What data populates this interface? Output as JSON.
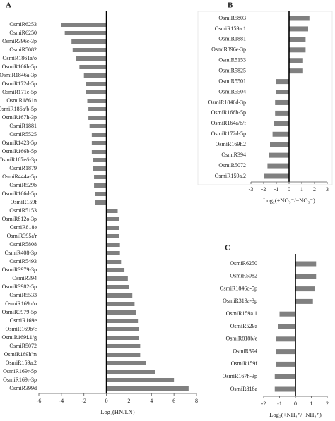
{
  "chart_data": [
    {
      "type": "bar",
      "orientation": "horizontal",
      "title": "A",
      "x_label": "Log₂(HN/LN)",
      "color": "#808080",
      "categories": [
        "OsmiR6253",
        "OsmiR6250",
        "OsmiR396c-3p",
        "OsmiR5082",
        "OsmiR1861a/o",
        "OsmiR166h-5p",
        "OsmiR1846a-3p",
        "OsmiR172d-5p",
        "OsmiR171c-5p",
        "OsmiR1861n",
        "OsmiR186a/b-5p",
        "OsmiR167h-3p",
        "OsmiR1881",
        "OsmiR5525",
        "OsmiR1423-5p",
        "OsmiR166b-5p",
        "OsmiR167e/i-3p",
        "OsmiR1879",
        "OsmiR444a-5p",
        "OsmiR529b",
        "OsmiR166d-5p",
        "OsmiR159f",
        "OsmiR5153",
        "OsmiR812o-3p",
        "OsmiR818e",
        "OsmiR395a'r",
        "OsmiR5808",
        "OsmiR408-3p",
        "OsmiR5493",
        "OsmiR3979-3p",
        "OsmiR394",
        "OsmiR3982-5p",
        "OsmiR5533",
        "OsmiR169n/o",
        "OsmiR3979-5p",
        "OsmiR169e",
        "OsmiR169b/c",
        "OsmiR169f.1/g",
        "OsmiR5072",
        "OsmiR169h'm",
        "OsmiR159a.2",
        "OsmiR169r-5p",
        "OsmiR169r-3p",
        "OsmiR399d"
      ],
      "values": [
        -4,
        -3.7,
        -3.1,
        -3,
        -2.7,
        -2.4,
        -2,
        -1.8,
        -1.8,
        -1.7,
        -1.6,
        -1.6,
        -1.5,
        -1.3,
        -1.3,
        -1.3,
        -1.2,
        -1.2,
        -1.1,
        -1.1,
        -1,
        -1,
        1,
        1.1,
        1.1,
        1.1,
        1.2,
        1.2,
        1.3,
        1.6,
        1.9,
        2,
        2.3,
        2.5,
        2.6,
        2.8,
        2.9,
        2.9,
        3,
        3,
        3.5,
        4.3,
        6,
        7.3
      ],
      "xlim": [
        -6,
        8
      ],
      "xticks": [
        -6,
        -4,
        -2,
        0,
        2,
        4,
        6,
        8
      ]
    },
    {
      "type": "bar",
      "orientation": "horizontal",
      "title": "B",
      "x_label": "Log₂(+NO₃⁻/−NO₃⁻)",
      "color": "#808080",
      "categories": [
        "OsmiR5803",
        "OsmiR159a.1",
        "OsmiR1881",
        "OsmiR396e-3p",
        "OsmiR5153",
        "OsmiR5825",
        "OsmiR5501",
        "OsmiR5504",
        "OsmiR1846d-3p",
        "OsmiR166b-5p",
        "OsmiR164a/b/f",
        "OsmiR172d-5p",
        "OsmiR169f.2",
        "OsmiR394",
        "OsmiR5072",
        "OsmiR159a.2"
      ],
      "values": [
        1.6,
        1.5,
        1.3,
        1.3,
        1.1,
        1.1,
        -1,
        -1,
        -1.1,
        -1.1,
        -1.2,
        -1.3,
        -1.5,
        -1.6,
        -1.7,
        -2
      ],
      "xlim": [
        -3,
        3
      ],
      "xticks": [
        -3,
        -2,
        -1,
        0,
        1,
        2,
        3
      ]
    },
    {
      "type": "bar",
      "orientation": "horizontal",
      "title": "C",
      "x_label": "Log₂(+NH₄⁺/−NH₄⁺)",
      "color": "#808080",
      "categories": [
        "OsmiR6250",
        "OsmiR5082",
        "OsmiR1846d-5p",
        "OsmiR319a-3p",
        "OsmiR159a.1",
        "OsmiR529a",
        "OsmiR818b/e",
        "OsmiR394",
        "OsmiR159f",
        "OsmiR167h-3p",
        "OsmiR818a"
      ],
      "values": [
        1.3,
        1.3,
        1.2,
        1.1,
        -1,
        -1.1,
        -1.2,
        -1.2,
        -1.2,
        -1.3,
        -1.3
      ],
      "xlim": [
        -2,
        2
      ],
      "xticks": [
        -2,
        -1,
        0,
        1,
        2
      ]
    }
  ]
}
